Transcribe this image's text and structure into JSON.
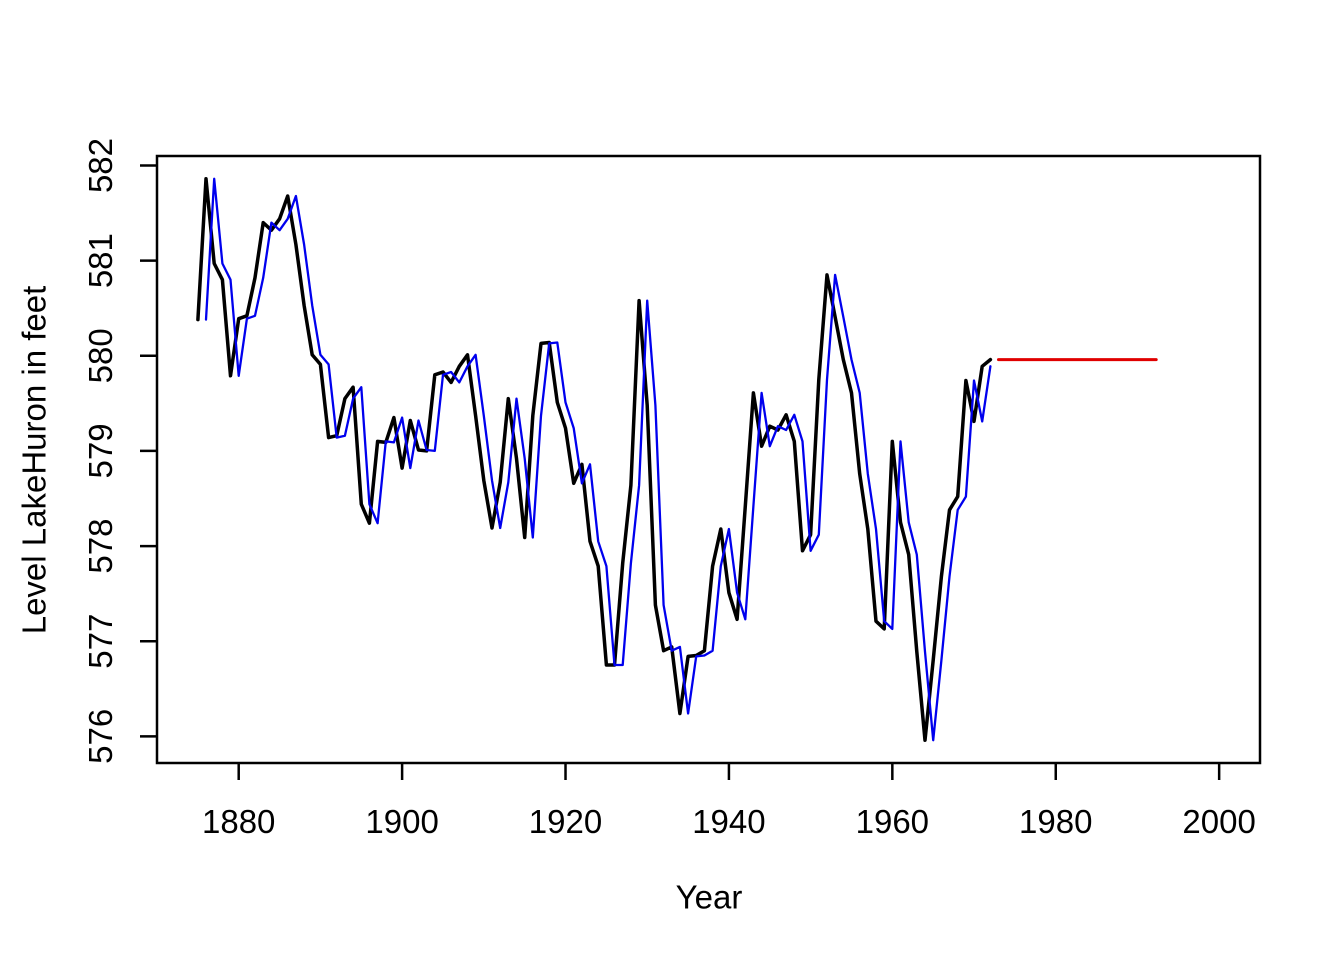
{
  "chart_data": {
    "type": "line",
    "title": "",
    "xlabel": "Year",
    "ylabel": "Level LakeHuron in feet",
    "x_ticks": [
      1880,
      1900,
      1920,
      1940,
      1960,
      1980,
      2000
    ],
    "y_ticks": [
      576,
      577,
      578,
      579,
      580,
      581,
      582
    ],
    "xlim": [
      1870,
      2005
    ],
    "ylim": [
      575.72,
      582.1
    ],
    "grid": false,
    "legend": "none",
    "axis_color": "#000000",
    "series": [
      {
        "name": "lake-huron-level-observed",
        "color": "#000000",
        "stroke_width": 3.5,
        "x0": 1875,
        "dx": 1,
        "values": [
          580.38,
          581.86,
          580.97,
          580.8,
          579.79,
          580.39,
          580.42,
          580.82,
          581.4,
          581.32,
          581.44,
          581.68,
          581.17,
          580.53,
          580.01,
          579.91,
          579.14,
          579.16,
          579.55,
          579.67,
          578.44,
          578.24,
          579.1,
          579.09,
          579.35,
          578.82,
          579.32,
          579.01,
          579.0,
          579.8,
          579.83,
          579.72,
          579.89,
          580.01,
          579.37,
          578.69,
          578.19,
          578.67,
          579.55,
          578.92,
          578.09,
          579.37,
          580.13,
          580.14,
          579.51,
          579.24,
          578.66,
          578.86,
          578.05,
          577.79,
          576.75,
          576.75,
          577.82,
          578.64,
          580.58,
          579.48,
          577.38,
          576.9,
          576.94,
          576.24,
          576.84,
          576.85,
          576.9,
          577.79,
          578.18,
          577.51,
          577.23,
          578.42,
          579.61,
          579.05,
          579.26,
          579.22,
          579.38,
          579.1,
          577.95,
          578.12,
          579.75,
          580.85,
          580.41,
          579.96,
          579.61,
          578.76,
          578.18,
          577.21,
          577.13,
          579.1,
          578.25,
          577.91,
          576.89,
          575.96,
          576.8,
          577.68,
          578.38,
          578.52,
          579.74,
          579.31,
          579.89,
          579.96
        ]
      },
      {
        "name": "lake-huron-level-lagged-one-year",
        "color": "#0000ee",
        "stroke_width": 2.3,
        "x0": 1876,
        "dx": 1,
        "values": [
          580.38,
          581.86,
          580.97,
          580.8,
          579.79,
          580.39,
          580.42,
          580.82,
          581.4,
          581.32,
          581.44,
          581.68,
          581.17,
          580.53,
          580.01,
          579.91,
          579.14,
          579.16,
          579.55,
          579.67,
          578.44,
          578.24,
          579.1,
          579.09,
          579.35,
          578.82,
          579.32,
          579.01,
          579.0,
          579.8,
          579.83,
          579.72,
          579.89,
          580.01,
          579.37,
          578.69,
          578.19,
          578.67,
          579.55,
          578.92,
          578.09,
          579.37,
          580.13,
          580.14,
          579.51,
          579.24,
          578.66,
          578.86,
          578.05,
          577.79,
          576.75,
          576.75,
          577.82,
          578.64,
          580.58,
          579.48,
          577.38,
          576.9,
          576.94,
          576.24,
          576.84,
          576.85,
          576.9,
          577.79,
          578.18,
          577.51,
          577.23,
          578.42,
          579.61,
          579.05,
          579.26,
          579.22,
          579.38,
          579.1,
          577.95,
          578.12,
          579.75,
          580.85,
          580.41,
          579.96,
          579.61,
          578.76,
          578.18,
          577.21,
          577.13,
          579.1,
          578.25,
          577.91,
          576.89,
          575.96,
          576.8,
          577.68,
          578.38,
          578.52,
          579.74,
          579.31,
          579.89
        ]
      },
      {
        "name": "forecast-flat-line",
        "color": "#e00000",
        "stroke_width": 3,
        "x": [
          1973,
          1992.3
        ],
        "values": [
          579.96,
          579.96
        ]
      }
    ]
  }
}
